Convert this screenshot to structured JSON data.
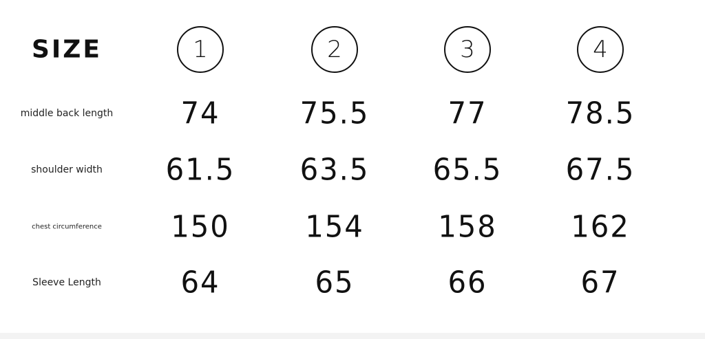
{
  "header": {
    "title": "SIZE",
    "sizes": [
      "1",
      "2",
      "3",
      "4"
    ]
  },
  "rows": [
    {
      "label": "middle back length",
      "values": [
        "74",
        "75.5",
        "77",
        "78.5"
      ]
    },
    {
      "label": "shoulder width",
      "values": [
        "61.5",
        "63.5",
        "65.5",
        "67.5"
      ]
    },
    {
      "label": "chest circumference",
      "values": [
        "150",
        "154",
        "158",
        "162"
      ]
    },
    {
      "label": "Sleeve Length",
      "values": [
        "64",
        "65",
        "66",
        "67"
      ]
    }
  ]
}
